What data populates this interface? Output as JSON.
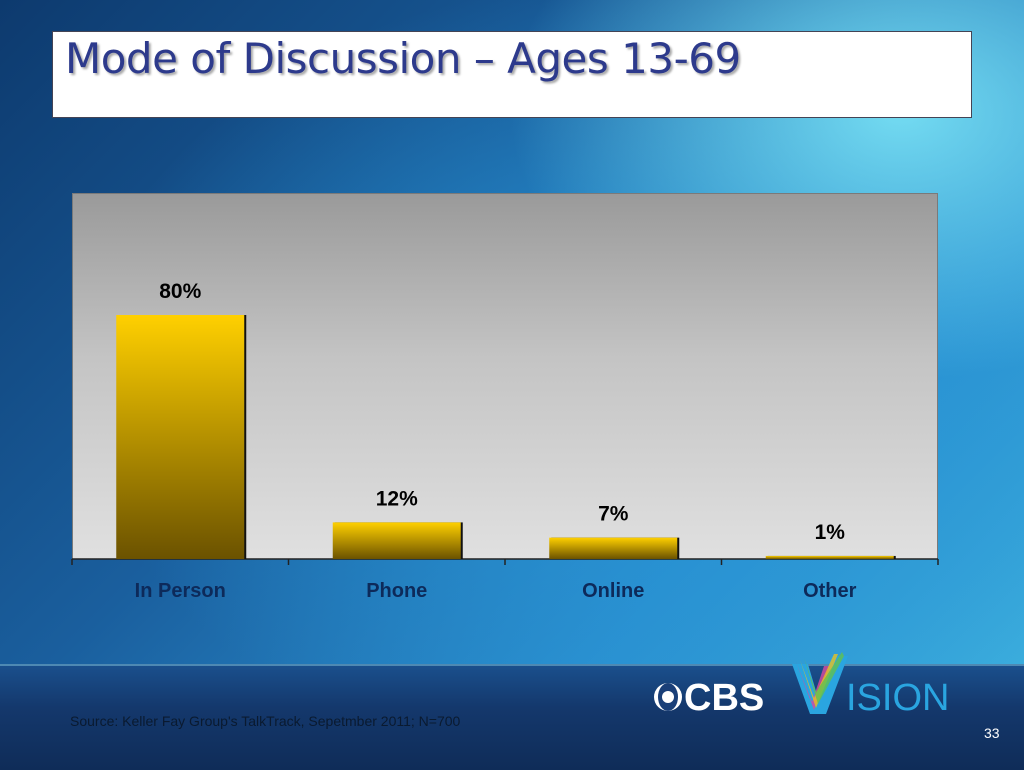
{
  "slide": {
    "title": "Mode of Discussion – Ages 13-69",
    "source": "Source:  Keller Fay Group's TalkTrack, Sepetmber 2011; N=700",
    "page_number": "33"
  },
  "logo": {
    "cbs": "CBS",
    "vision": "ISION",
    "icon": "cbs-eye-icon"
  },
  "colors": {
    "bar_top": "#ffd000",
    "bar_bottom": "#6b5200",
    "label": "#000000",
    "category_label": "#0d2a5a",
    "title": "#2d3a8c"
  },
  "chart_data": {
    "type": "bar",
    "title": "Mode of Discussion – Ages 13-69",
    "categories": [
      "In Person",
      "Phone",
      "Online",
      "Other"
    ],
    "values": [
      80,
      12,
      7,
      1
    ],
    "data_labels": [
      "80%",
      "12%",
      "7%",
      "1%"
    ],
    "xlabel": "",
    "ylabel": "",
    "ylim": [
      0,
      100
    ],
    "grid": false,
    "legend": "none"
  }
}
